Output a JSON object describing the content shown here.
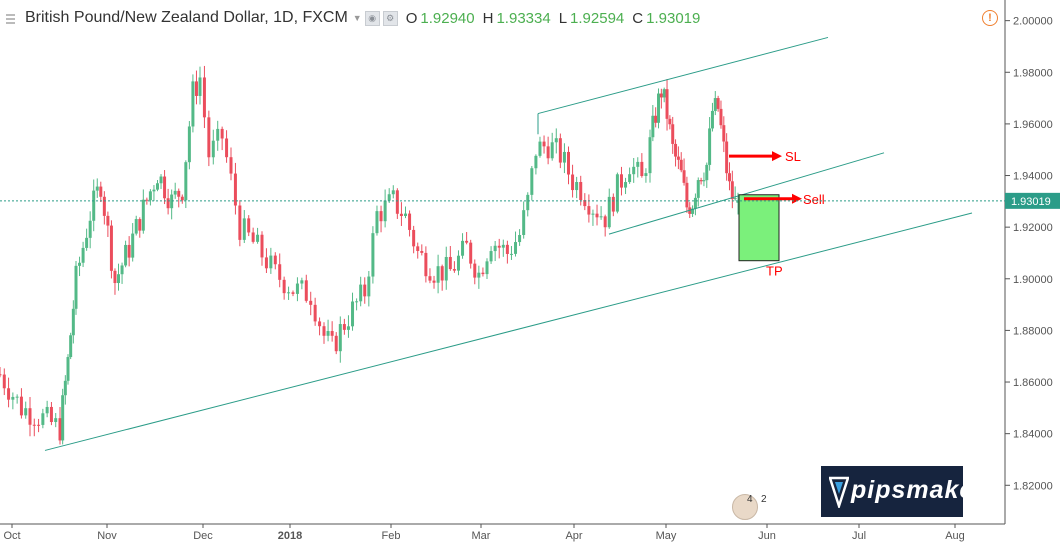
{
  "header": {
    "title": "British Pound/New Zealand Dollar, 1D, FXCM",
    "open_label": "O",
    "open": "1.92940",
    "high_label": "H",
    "high": "1.93334",
    "low_label": "L",
    "low": "1.92594",
    "close_label": "C",
    "close": "1.93019"
  },
  "chart_data": {
    "type": "candlestick",
    "y_axis": {
      "range": [
        1.805,
        2.008
      ],
      "ticks": [
        "2.00000",
        "1.98000",
        "1.96000",
        "1.94000",
        "1.92000",
        "1.90000",
        "1.88000",
        "1.86000",
        "1.84000",
        "1.82000"
      ],
      "current_price_label": "1.93019",
      "current_price": 1.93019
    },
    "x_axis": {
      "ticks": [
        "Oct",
        "Nov",
        "Dec",
        "2018",
        "Feb",
        "Mar",
        "Apr",
        "May",
        "Jun",
        "Jul",
        "Aug"
      ]
    },
    "annotations": {
      "sl_label": "SL",
      "sell_label": "Sell",
      "tp_label": "TP",
      "sl_price": 1.9475,
      "sell_price": 1.931,
      "tp_price": 1.907
    },
    "colors": {
      "up": "#53b987",
      "down": "#eb4d5c",
      "trend": "#2b9c88",
      "arrow": "#ff0000",
      "tp_box": "#7bf07b"
    }
  },
  "logo": {
    "text": "pipsmake"
  },
  "flag_badge": {
    "left": "4",
    "right": "2"
  }
}
